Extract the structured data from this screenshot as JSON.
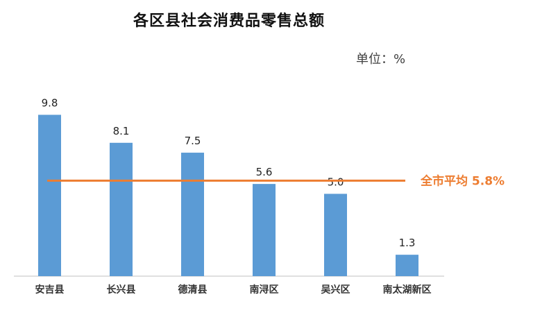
{
  "chart_data": {
    "type": "bar",
    "title": "各区县社会消费品零售总额",
    "unit_label": "单位：%",
    "categories": [
      "安吉县",
      "长兴县",
      "德清县",
      "南浔区",
      "吴兴区",
      "南太湖新区"
    ],
    "values": [
      9.8,
      8.1,
      7.5,
      5.6,
      5.0,
      1.3
    ],
    "value_labels": [
      "9.8",
      "8.1",
      "7.5",
      "5.6",
      "5.0",
      "1.3"
    ],
    "reference_line": {
      "label": "全市平均 5.8%",
      "value": 5.8
    },
    "ylim": [
      0,
      11
    ],
    "grid": false,
    "bar_color": "#5B9BD5",
    "line_color": "#ED7D31"
  }
}
